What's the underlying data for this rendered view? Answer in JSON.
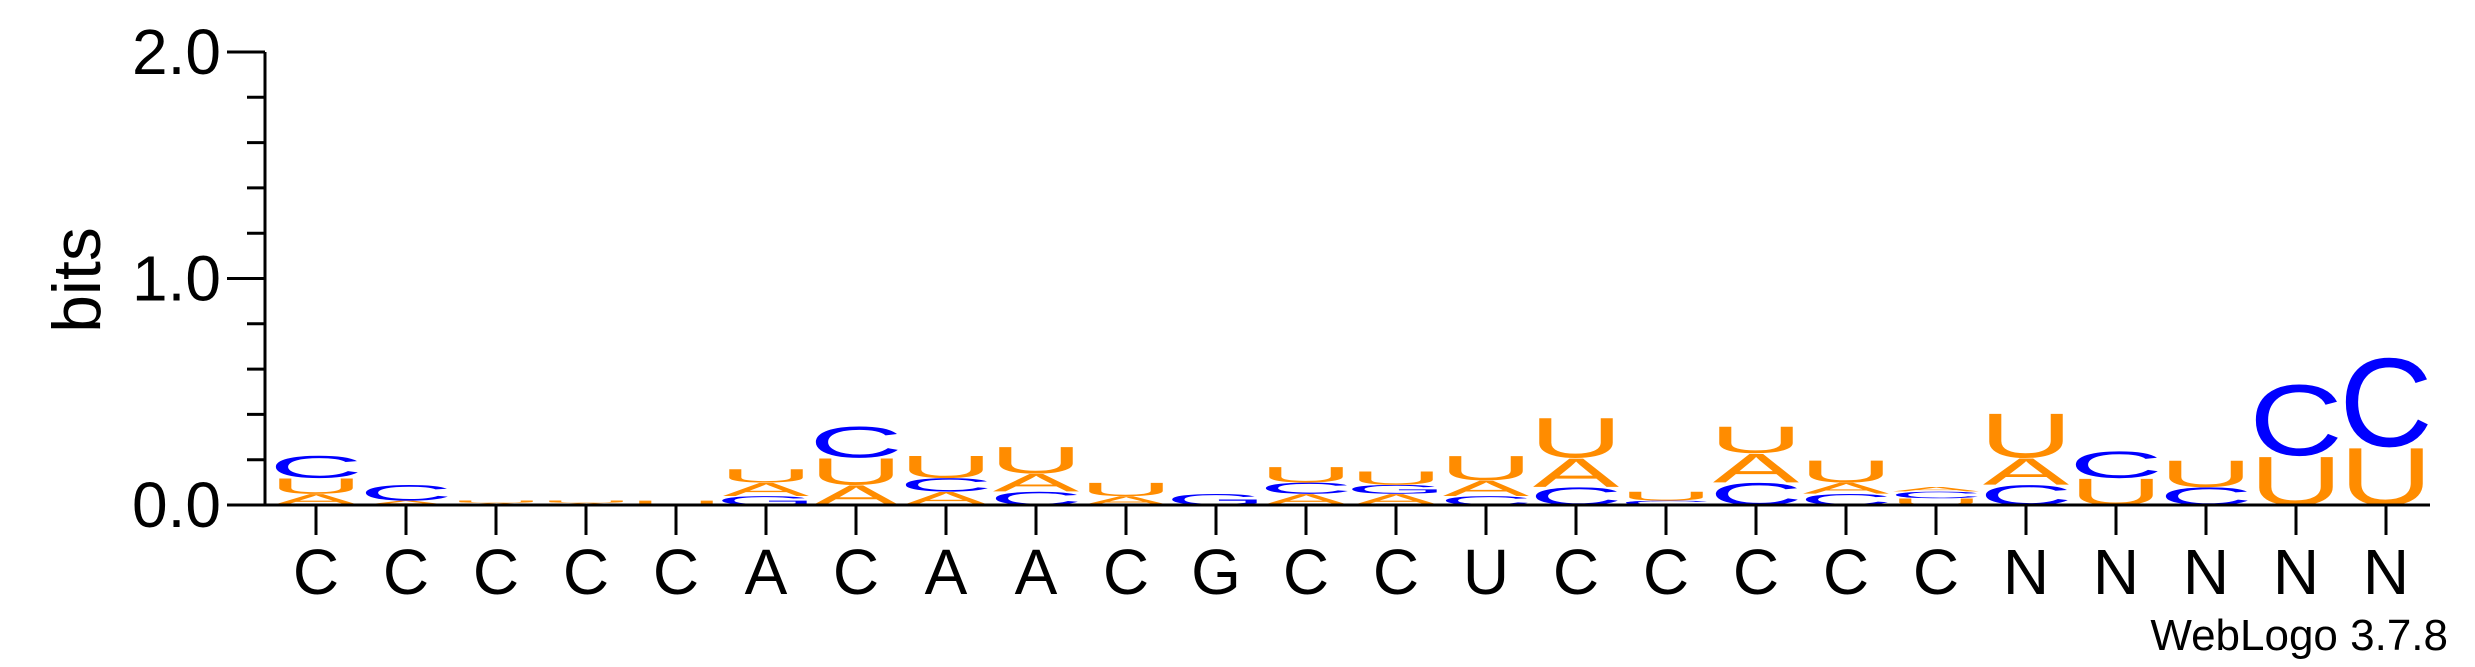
{
  "chart_data": {
    "type": "sequence-logo",
    "ylabel": "bits",
    "ylim": [
      0,
      2.0
    ],
    "yticks": [
      "0.0",
      "1.0",
      "2.0"
    ],
    "xtick_labels": [
      "C",
      "C",
      "C",
      "C",
      "C",
      "A",
      "C",
      "A",
      "A",
      "C",
      "G",
      "C",
      "C",
      "U",
      "C",
      "C",
      "C",
      "C",
      "C",
      "N",
      "N",
      "N",
      "N",
      "N"
    ],
    "colors": {
      "A": "#ff8c00",
      "U": "#ff8c00",
      "C": "#0000ff",
      "G": "#0000ff"
    },
    "columns": [
      [
        [
          "A",
          0.05
        ],
        [
          "U",
          0.07
        ],
        [
          "C",
          0.1
        ]
      ],
      [
        [
          "A",
          0.02
        ],
        [
          "C",
          0.07
        ]
      ],
      [
        [
          "A",
          0.01
        ],
        [
          "U",
          0.01
        ]
      ],
      [
        [
          "A",
          0.01
        ],
        [
          "U",
          0.01
        ]
      ],
      [
        [
          "U",
          0.02
        ]
      ],
      [
        [
          "G",
          0.04
        ],
        [
          "A",
          0.06
        ],
        [
          "U",
          0.06
        ]
      ],
      [
        [
          "A",
          0.09
        ],
        [
          "U",
          0.12
        ],
        [
          "C",
          0.14
        ]
      ],
      [
        [
          "A",
          0.06
        ],
        [
          "C",
          0.06
        ],
        [
          "U",
          0.1
        ]
      ],
      [
        [
          "C",
          0.06
        ],
        [
          "A",
          0.08
        ],
        [
          "U",
          0.12
        ]
      ],
      [
        [
          "A",
          0.04
        ],
        [
          "U",
          0.06
        ]
      ],
      [
        [
          "G",
          0.05
        ]
      ],
      [
        [
          "A",
          0.05
        ],
        [
          "C",
          0.05
        ],
        [
          "U",
          0.07
        ]
      ],
      [
        [
          "A",
          0.05
        ],
        [
          "G",
          0.04
        ],
        [
          "U",
          0.06
        ]
      ],
      [
        [
          "C",
          0.04
        ],
        [
          "A",
          0.07
        ],
        [
          "U",
          0.11
        ]
      ],
      [
        [
          "C",
          0.08
        ],
        [
          "A",
          0.13
        ],
        [
          "U",
          0.18
        ]
      ],
      [
        [
          "C",
          0.02
        ],
        [
          "U",
          0.04
        ]
      ],
      [
        [
          "C",
          0.1
        ],
        [
          "A",
          0.13
        ],
        [
          "U",
          0.12
        ]
      ],
      [
        [
          "C",
          0.05
        ],
        [
          "A",
          0.05
        ],
        [
          "U",
          0.1
        ]
      ],
      [
        [
          "U",
          0.03
        ],
        [
          "C",
          0.03
        ],
        [
          "A",
          0.02
        ]
      ],
      [
        [
          "C",
          0.09
        ],
        [
          "A",
          0.12
        ],
        [
          "U",
          0.2
        ]
      ],
      [
        [
          "U",
          0.12
        ],
        [
          "C",
          0.12
        ]
      ],
      [
        [
          "C",
          0.08
        ],
        [
          "U",
          0.12
        ]
      ],
      [
        [
          "U",
          0.22
        ],
        [
          "C",
          0.32
        ]
      ],
      [
        [
          "U",
          0.26
        ],
        [
          "C",
          0.4
        ]
      ]
    ]
  },
  "watermark": "WebLogo 3.7.8"
}
